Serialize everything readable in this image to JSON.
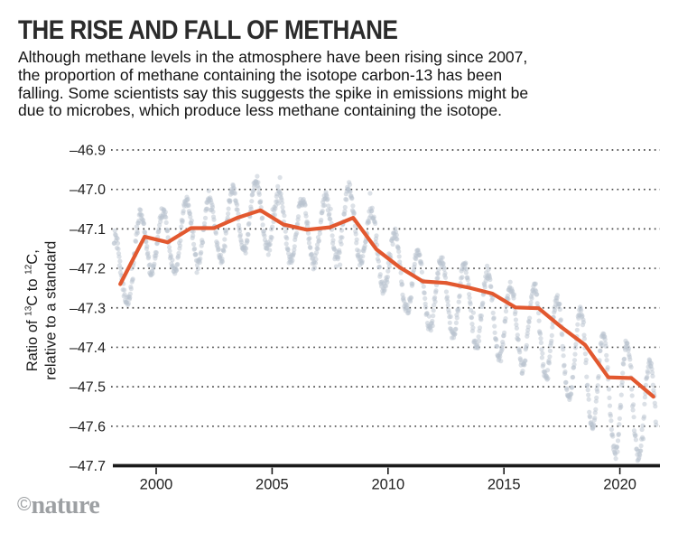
{
  "header": {
    "title": "THE RISE AND FALL OF METHANE",
    "subtitle_lines": [
      "Although methane levels in the atmosphere have been rising since 2007,",
      "the proportion of methane containing the isotope carbon-13 has been",
      "falling. Some scientists say this suggests the spike in emissions might be",
      "due to microbes, which produce less methane containing the isotope."
    ]
  },
  "footer": {
    "credit_symbol": "©",
    "credit_name": "nature"
  },
  "colors": {
    "trend_orange": "#e2582f",
    "scatter_gray": "#bac4cf",
    "gridline": "#4a4a4a",
    "axis": "#1a1a1a",
    "text_dark": "#222222",
    "credit_gray": "#9da0a3"
  },
  "chart_data": {
    "type": "scatter",
    "title": "THE RISE AND FALL OF METHANE",
    "x_axis": {
      "tick_values": [
        2000,
        2005,
        2010,
        2015,
        2020
      ],
      "tick_labels": [
        "2000",
        "2005",
        "2010",
        "2015",
        "2020"
      ],
      "range": [
        1998.1,
        2021.75
      ],
      "grid": false
    },
    "y_axis": {
      "title": {
        "pre": "Ratio of ",
        "sup1": "13",
        "mid": "C to ",
        "sup2": "12",
        "post": "C,",
        "line2": "relative to a standard"
      },
      "tick_values": [
        -46.9,
        -47.0,
        -47.1,
        -47.2,
        -47.3,
        -47.4,
        -47.5,
        -47.6,
        -47.7
      ],
      "tick_labels": [
        "–46.9",
        "–47.0",
        "–47.1",
        "–47.2",
        "–47.3",
        "–47.4",
        "–47.5",
        "–47.6",
        "–47.7"
      ],
      "range": [
        -47.7,
        -46.9
      ],
      "grid": "dotted"
    },
    "series": [
      {
        "name": "annual-mean-trend",
        "type": "line",
        "color": "#e2582f",
        "points": [
          [
            1998.45,
            -47.24
          ],
          [
            1999.5,
            -47.12
          ],
          [
            2000.5,
            -47.134
          ],
          [
            2001.5,
            -47.098
          ],
          [
            2002.5,
            -47.098
          ],
          [
            2003.5,
            -47.072
          ],
          [
            2004.5,
            -47.053
          ],
          [
            2005.5,
            -47.089
          ],
          [
            2006.5,
            -47.102
          ],
          [
            2007.5,
            -47.096
          ],
          [
            2008.5,
            -47.072
          ],
          [
            2009.5,
            -47.152
          ],
          [
            2010.5,
            -47.197
          ],
          [
            2011.5,
            -47.233
          ],
          [
            2012.5,
            -47.237
          ],
          [
            2013.5,
            -47.249
          ],
          [
            2014.5,
            -47.264
          ],
          [
            2015.5,
            -47.299
          ],
          [
            2016.5,
            -47.301
          ],
          [
            2017.5,
            -47.35
          ],
          [
            2018.5,
            -47.394
          ],
          [
            2019.5,
            -47.476
          ],
          [
            2020.5,
            -47.478
          ],
          [
            2021.45,
            -47.525
          ]
        ]
      },
      {
        "name": "individual-measurements-seasonal",
        "type": "scatter-dots",
        "color": "#bac4cf",
        "opacity": 0.5,
        "model": {
          "description": "Roughly fortnightly measurements oscillating seasonally (period 1 yr) around the annual trend; seasonal amplitude grows and band centre sinks below trend after ~2010.",
          "t_start": 1998.18,
          "t_end": 2021.58,
          "t_step": 0.0185,
          "phase_peak_fraction": 0.3,
          "pre_trend_anchor": [
            1998.1,
            -47.165
          ],
          "amplitude_anchors": [
            [
              1998.0,
              0.082
            ],
            [
              2009.0,
              0.082
            ],
            [
              2012.0,
              0.093
            ],
            [
              2016.0,
              0.102
            ],
            [
              2018.0,
              0.122
            ],
            [
              2019.4,
              0.145
            ],
            [
              2021.7,
              0.128
            ]
          ],
          "offset_anchors": [
            [
              1998.0,
              -0.005
            ],
            [
              2010.0,
              -0.005
            ],
            [
              2014.0,
              -0.05
            ],
            [
              2021.7,
              -0.052
            ]
          ],
          "noise_sigma": 0.008
        }
      }
    ]
  }
}
